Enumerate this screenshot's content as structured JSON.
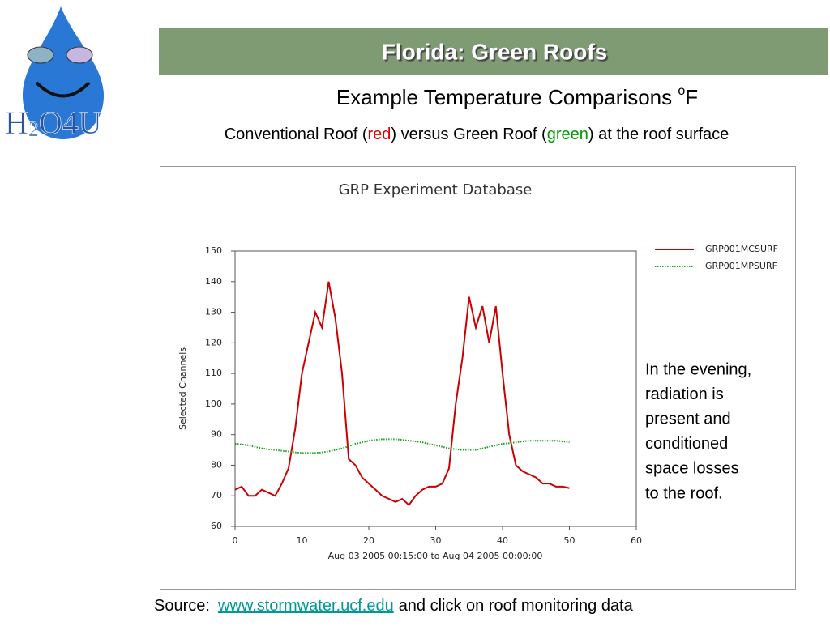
{
  "logo": {
    "parts": [
      "H",
      "2",
      "O4U"
    ]
  },
  "slide": {
    "title": "Florida: Green Roofs",
    "subtitle": [
      "Example Temperature Comparisons ",
      "o",
      "F"
    ],
    "caption": [
      "Conventional Roof (",
      "red",
      ") versus Green Roof (",
      "green",
      ") at the roof surface"
    ],
    "note": [
      "In the evening,",
      "radiation is",
      "present and",
      "conditioned",
      "space losses",
      "to the roof."
    ],
    "source": [
      "Source:",
      "www.stormwater.ucf.edu",
      "and click on roof monitoring data"
    ]
  },
  "chart_data": {
    "type": "line",
    "title": "GRP Experiment Database",
    "y_label": "Selected Channels",
    "x_label": "Aug 03 2005 00:15:00 to Aug 04 2005 00:00:00",
    "x": [
      0,
      1,
      2,
      3,
      4,
      5,
      6,
      7,
      8,
      9,
      10,
      11,
      12,
      13,
      14,
      15,
      16,
      17,
      18,
      19,
      20,
      21,
      22,
      23,
      24,
      25,
      26,
      27,
      28,
      29,
      30,
      31,
      32,
      33,
      34,
      35,
      36,
      37,
      38,
      39,
      40,
      41,
      42,
      43,
      44,
      45,
      46,
      47,
      48,
      49,
      50
    ],
    "series": [
      {
        "name": "GRP001MCSURF",
        "color": "#cc0000",
        "style": "solid",
        "values": [
          72,
          73,
          70,
          70,
          72,
          71,
          70,
          74,
          79,
          92,
          110,
          120,
          130,
          125,
          140,
          128,
          110,
          82,
          80,
          76,
          74,
          72,
          70,
          69,
          68,
          69,
          67,
          70,
          72,
          73,
          73,
          74,
          79,
          100,
          115,
          135,
          125,
          132,
          120,
          132,
          110,
          90,
          80,
          78,
          77,
          76,
          74,
          74,
          73,
          73,
          72.5
        ]
      },
      {
        "name": "GRP001MPSURF",
        "color": "#1aa01a",
        "style": "dotted",
        "values": [
          87,
          86.8,
          86.5,
          86,
          85.5,
          85.2,
          85,
          84.7,
          84.5,
          84.2,
          84,
          84,
          84,
          84.2,
          84.5,
          85,
          85.5,
          86.2,
          87,
          87.5,
          88,
          88.3,
          88.5,
          88.5,
          88.5,
          88.3,
          88,
          87.8,
          87.5,
          87,
          86.5,
          86,
          85.5,
          85.2,
          85,
          85,
          85,
          85.5,
          86,
          86.5,
          87,
          87.2,
          87.5,
          87.8,
          88,
          88,
          88,
          88,
          88,
          87.8,
          87.5
        ]
      }
    ],
    "xlim": [
      0,
      60
    ],
    "ylim": [
      60,
      150
    ],
    "xticks": [
      0,
      10,
      20,
      30,
      40,
      50,
      60
    ],
    "yticks": [
      60,
      70,
      80,
      90,
      100,
      110,
      120,
      130,
      140,
      150
    ],
    "grid": false,
    "legend": "right"
  }
}
